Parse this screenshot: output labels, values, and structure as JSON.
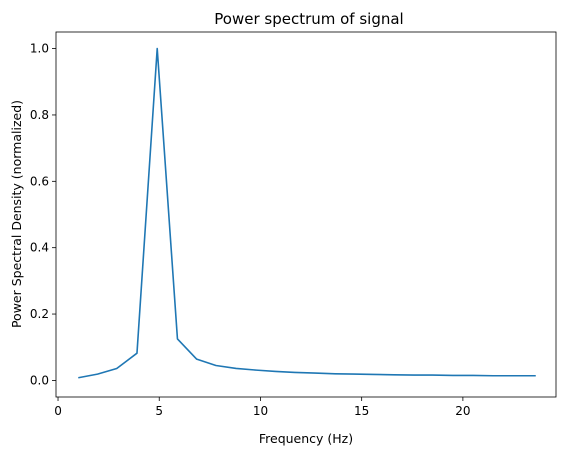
{
  "chart_data": {
    "type": "line",
    "title": "Power spectrum of signal",
    "xlabel": "Frequency (Hz)",
    "ylabel": "Power Spectral Density (normalized)",
    "xlim": [
      -0.1,
      24.6
    ],
    "ylim": [
      -0.05,
      1.05
    ],
    "x_ticks": [
      0,
      5,
      10,
      15,
      20
    ],
    "y_ticks": [
      0.0,
      0.2,
      0.4,
      0.6,
      0.8,
      1.0
    ],
    "x_tick_labels": [
      "0",
      "5",
      "10",
      "15",
      "20"
    ],
    "y_tick_labels": [
      "0.0",
      "0.2",
      "0.4",
      "0.6",
      "0.8",
      "1.0"
    ],
    "grid": false,
    "line_color": "#1f77b4",
    "series": [
      {
        "x": [
          1.0,
          1.95,
          2.9,
          3.9,
          4.9,
          5.9,
          6.85,
          7.8,
          8.8,
          9.8,
          10.75,
          11.7,
          12.7,
          13.7,
          14.6,
          15.6,
          16.6,
          17.6,
          18.5,
          19.5,
          20.5,
          21.5,
          22.4,
          23.6
        ],
        "y": [
          0.008,
          0.019,
          0.036,
          0.082,
          1.0,
          0.125,
          0.064,
          0.045,
          0.036,
          0.031,
          0.027,
          0.024,
          0.022,
          0.02,
          0.019,
          0.018,
          0.017,
          0.016,
          0.016,
          0.015,
          0.015,
          0.014,
          0.014,
          0.014
        ]
      }
    ]
  }
}
